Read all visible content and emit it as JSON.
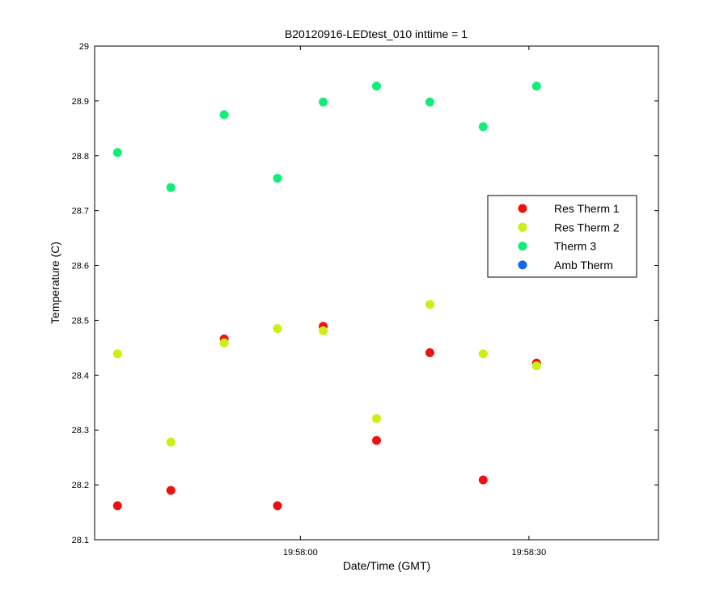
{
  "chart_data": {
    "type": "scatter",
    "title": "B20120916-LEDtest_010 inttime = 1",
    "xlabel": "Date/Time (GMT)",
    "ylabel": "Temperature (C)",
    "xlim": [
      "19:57:33",
      "19:58:47"
    ],
    "ylim": [
      28.1,
      29.0
    ],
    "x_ticks": [
      "19:58:00",
      "19:58:30"
    ],
    "y_ticks": [
      "28.1",
      "28.2",
      "28.3",
      "28.4",
      "28.5",
      "28.6",
      "28.7",
      "28.8",
      "28.9",
      "29"
    ],
    "grid": false,
    "legend_position": "right",
    "series": [
      {
        "name": "Res Therm 1",
        "color": "#ee1111",
        "points": [
          [
            "19:57:36",
            28.162
          ],
          [
            "19:57:43",
            28.19
          ],
          [
            "19:57:50",
            28.466
          ],
          [
            "19:57:57",
            28.162
          ],
          [
            "19:58:03",
            28.489
          ],
          [
            "19:58:10",
            28.281
          ],
          [
            "19:58:17",
            28.441
          ],
          [
            "19:58:24",
            28.209
          ],
          [
            "19:58:31",
            28.422
          ]
        ]
      },
      {
        "name": "Res Therm 2",
        "color": "#ccee11",
        "points": [
          [
            "19:57:36",
            28.439
          ],
          [
            "19:57:43",
            28.278
          ],
          [
            "19:57:50",
            28.459
          ],
          [
            "19:57:57",
            28.485
          ],
          [
            "19:58:03",
            28.481
          ],
          [
            "19:58:10",
            28.321
          ],
          [
            "19:58:17",
            28.529
          ],
          [
            "19:58:24",
            28.439
          ],
          [
            "19:58:31",
            28.417
          ]
        ]
      },
      {
        "name": "Therm 3",
        "color": "#11ee77",
        "points": [
          [
            "19:57:36",
            28.806
          ],
          [
            "19:57:43",
            28.742
          ],
          [
            "19:57:50",
            28.875
          ],
          [
            "19:57:57",
            28.759
          ],
          [
            "19:58:03",
            28.898
          ],
          [
            "19:58:10",
            28.927
          ],
          [
            "19:58:17",
            28.898
          ],
          [
            "19:58:24",
            28.853
          ],
          [
            "19:58:31",
            28.927
          ]
        ]
      },
      {
        "name": "Amb Therm",
        "color": "#1166ee",
        "points": []
      }
    ]
  }
}
